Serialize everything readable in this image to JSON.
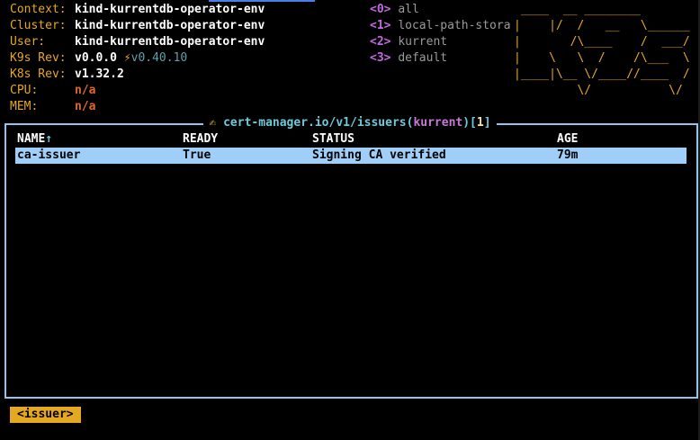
{
  "info": {
    "context_label": "Context:",
    "context": "kind-kurrentdb-operator-env",
    "cluster_label": "Cluster:",
    "cluster": "kind-kurrentdb-operator-env",
    "user_label": "User:",
    "user": "kind-kurrentdb-operator-env",
    "k9s_rev_label": "K9s Rev:",
    "k9s_rev": "v0.0.0",
    "k9s_update_icon": "⚡",
    "k9s_latest": "v0.40.10",
    "k8s_rev_label": "K8s Rev:",
    "k8s_rev": "v1.32.2",
    "cpu_label": "CPU:",
    "cpu": "n/a",
    "mem_label": "MEM:",
    "mem": "n/a"
  },
  "namespaces": [
    {
      "key": "<0>",
      "name": "all"
    },
    {
      "key": "<1>",
      "name": "local-path-stora"
    },
    {
      "key": "<2>",
      "name": "kurrent"
    },
    {
      "key": "<3>",
      "name": "default"
    }
  ],
  "logo": [
    " ____  __ ________       ",
    "|    |/  /   __   \\______",
    "|       /\\____    /  ___/",
    "|    \\   \\  /    /\\___  \\",
    "|____|\\__ \\/____//____  /",
    "         \\/           \\/ "
  ],
  "view": {
    "icon": "✍",
    "resource": "cert-manager.io/v1/issuers",
    "namespace": "kurrent",
    "count": "1",
    "columns": [
      "NAME",
      "READY",
      "STATUS",
      "AGE"
    ],
    "sort_indicator": "↑",
    "rows": [
      {
        "name": "ca-issuer",
        "ready": "True",
        "status": "Signing CA verified",
        "age": "79m"
      }
    ]
  },
  "crumbs": [
    "<issuer>"
  ],
  "colors": {
    "accent": "#e5a823",
    "border": "#8ec5ee",
    "selection": "#9fcff9"
  }
}
